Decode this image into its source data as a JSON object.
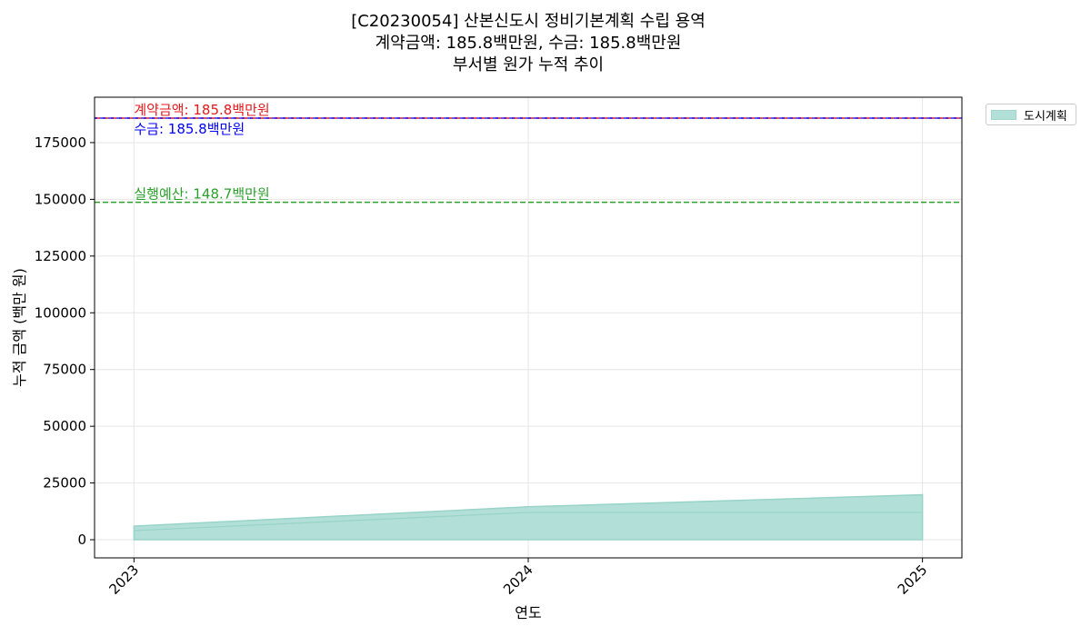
{
  "title_lines": [
    "[C20230054] 산본신도시 정비기본계획 수립 용역",
    "계약금액: 185.8백만원, 수금: 185.8백만원",
    "부서별 원가 누적 추이"
  ],
  "colors": {
    "area_fill": "#b2dfd8",
    "area_stroke": "#99d4c9",
    "contract_line": "#e41a1c",
    "collection_line": "#0000ff",
    "budget_line": "#2ca02c",
    "grid": "#e6e6e6"
  },
  "chart_data": {
    "type": "area",
    "title": "[C20230054] 산본신도시 정비기본계획 수립 용역 / 계약금액: 185.8백만원, 수금: 185.8백만원 / 부서별 원가 누적 추이",
    "xlabel": "연도",
    "ylabel": "누적 금액 (백만 원)",
    "x": [
      2023,
      2024,
      2025
    ],
    "x_tick_labels": [
      "2023",
      "2024",
      "2025"
    ],
    "xlim": [
      2022.9,
      2025.1
    ],
    "ylim": [
      -8000,
      195000
    ],
    "y_ticks": [
      0,
      25000,
      50000,
      75000,
      100000,
      125000,
      150000,
      175000
    ],
    "y_tick_labels": [
      "0",
      "25000",
      "50000",
      "75000",
      "100000",
      "125000",
      "150000",
      "175000"
    ],
    "grid": true,
    "legend_position": "outside-top-right",
    "series": [
      {
        "name": "도시계획",
        "values": [
          6000,
          14500,
          19800
        ],
        "inner_line": [
          4000,
          12000,
          12000
        ]
      }
    ],
    "reference_lines": [
      {
        "label": "계약금액: 185.8백만원",
        "value": 185800,
        "color": "#e41a1c"
      },
      {
        "label": "수금: 185.8백만원",
        "value": 185800,
        "color": "#0000ff"
      },
      {
        "label": "실행예산: 148.7백만원",
        "value": 148700,
        "color": "#2ca02c"
      }
    ]
  }
}
